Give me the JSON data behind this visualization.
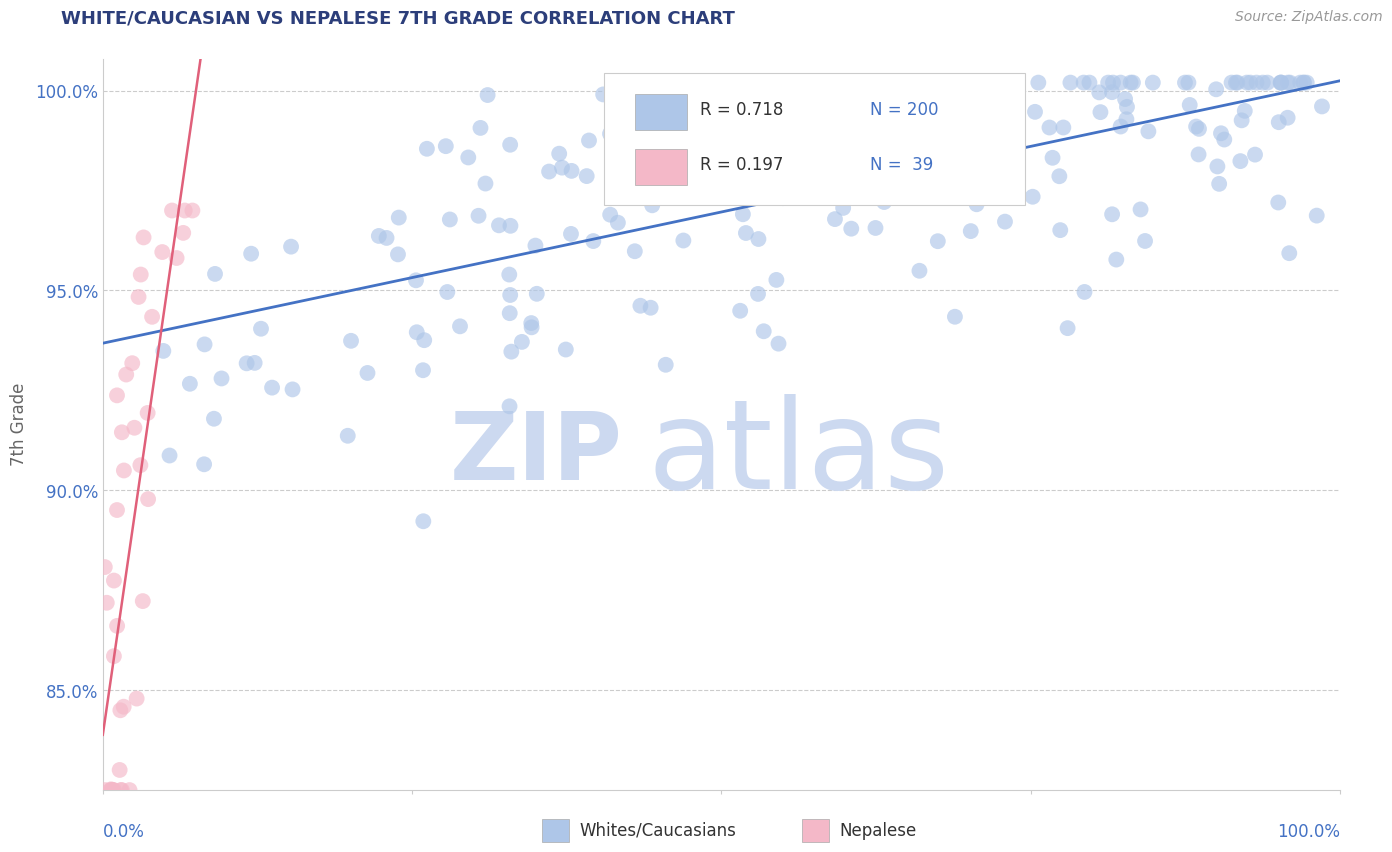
{
  "title": "WHITE/CAUCASIAN VS NEPALESE 7TH GRADE CORRELATION CHART",
  "source": "Source: ZipAtlas.com",
  "ylabel": "7th Grade",
  "y_tick_labels": [
    "85.0%",
    "90.0%",
    "95.0%",
    "100.0%"
  ],
  "y_tick_values": [
    0.85,
    0.9,
    0.95,
    1.0
  ],
  "xlim": [
    0.0,
    1.0
  ],
  "ylim": [
    0.825,
    1.008
  ],
  "legend_entries": [
    {
      "label": "Whites/Caucasians",
      "color": "#aec6e8",
      "R": 0.718,
      "N": 200
    },
    {
      "label": "Nepalese",
      "color": "#f4b8c8",
      "R": 0.197,
      "N": 39
    }
  ],
  "title_color": "#2c3e7a",
  "title_fontsize": 13,
  "axis_label_color": "#666666",
  "tick_label_color": "#4472c4",
  "source_color": "#999999",
  "watermark_lines": [
    "ZIP",
    "atlas"
  ],
  "watermark_color": "#ccd9f0",
  "blue_line_color": "#4472c4",
  "pink_line_color": "#e0607a",
  "scatter_blue_color": "#aec6e8",
  "scatter_pink_color": "#f4b8c8",
  "scatter_alpha": 0.65,
  "scatter_size": 130,
  "grid_color": "#cccccc",
  "background_color": "#ffffff"
}
